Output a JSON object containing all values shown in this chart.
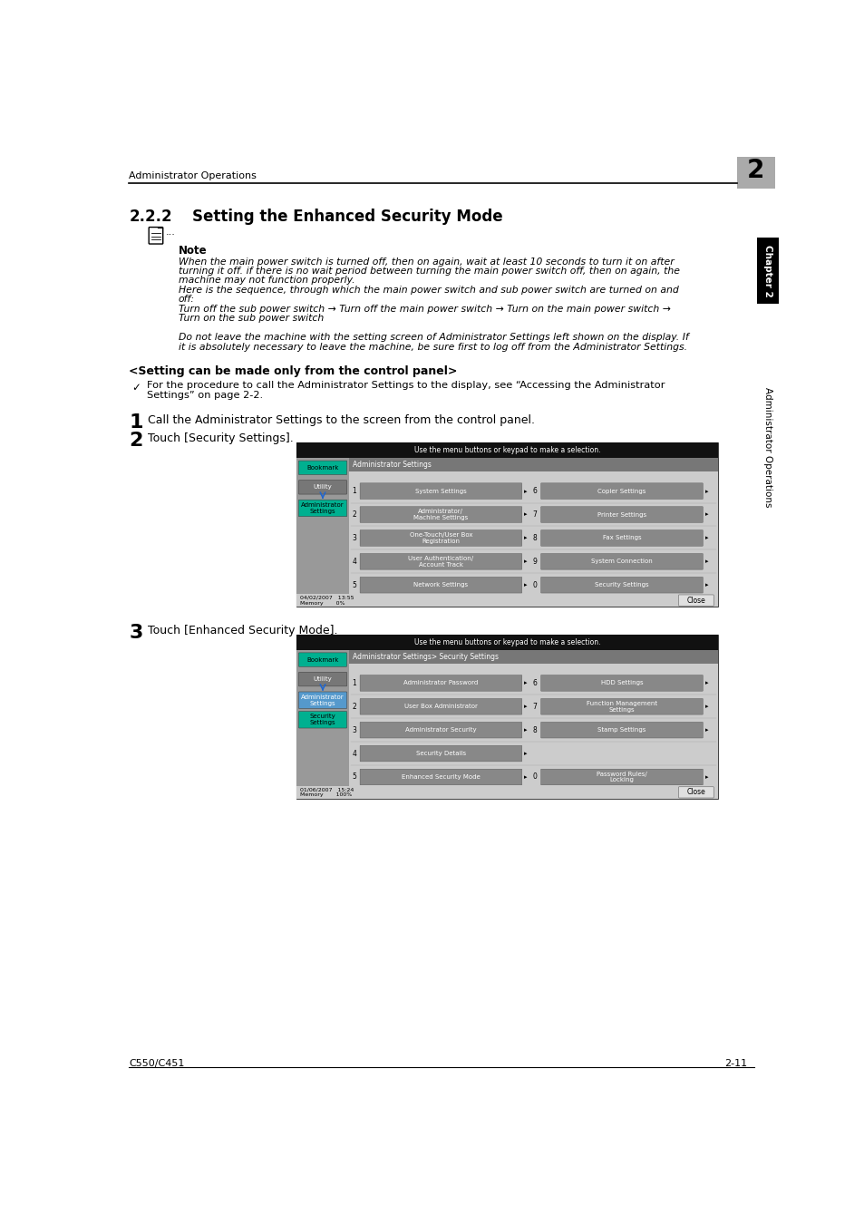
{
  "page_title": "Administrator Operations",
  "page_number": "2",
  "section": "2.2.2",
  "section_title": "Setting the Enhanced Security Mode",
  "note_label": "Note",
  "note_text_lines": [
    "When the main power switch is turned off, then on again, wait at least 10 seconds to turn it on after",
    "turning it off. if there is no wait period between turning the main power switch off, then on again, the",
    "machine may not function properly.",
    "Here is the sequence, through which the main power switch and sub power switch are turned on and",
    "off:",
    "Turn off the sub power switch → Turn off the main power switch → Turn on the main power switch →",
    "Turn on the sub power switch"
  ],
  "note_text2_lines": [
    "Do not leave the machine with the setting screen of Administrator Settings left shown on the display. If",
    "it is absolutely necessary to leave the machine, be sure first to log off from the Administrator Settings."
  ],
  "setting_header": "<Setting can be made only from the control panel>",
  "checkmark_text_lines": [
    "For the procedure to call the Administrator Settings to the display, see “Accessing the Administrator",
    "Settings” on page 2-2."
  ],
  "step1_text": "Call the Administrator Settings to the screen from the control panel.",
  "step2_text": "Touch [Security Settings].",
  "step3_text": "Touch [Enhanced Security Mode].",
  "sidebar_text": "Administrator Operations",
  "sidebar_chapter": "Chapter 2",
  "footer_left": "C550/C451",
  "footer_right": "2-11",
  "bg_color": "#ffffff",
  "text_color": "#000000",
  "page_num_bg": "#aaaaaa",
  "sidebar_black_bg": "#000000",
  "sidebar_white_text": "#ffffff",
  "screen_top_bar_color": "#1a1a1a",
  "screen_subbar_color": "#777777",
  "screen_bg_color": "#aaaaaa",
  "screen_left_panel_color": "#888888",
  "screen_btn_teal": "#00b0a0",
  "screen_btn_gray_dark": "#666666",
  "screen_btn_gray_med": "#999999",
  "screen_btn_light": "#bbbbbb",
  "screen_btn_green": "#33aa55"
}
